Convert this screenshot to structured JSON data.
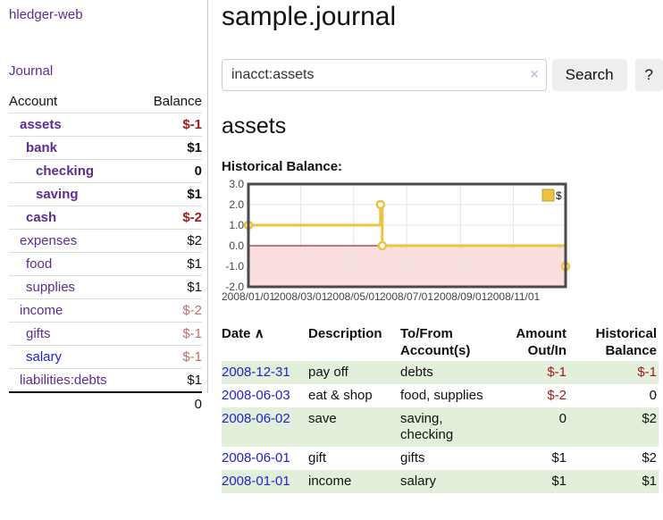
{
  "colors": {
    "accent_purple": "#5c2d91",
    "link_blue": "#2222cc",
    "negative": "#9d1a1a",
    "negative_muted": "#bb6f6f",
    "row_stripe_green": "#e2efdb",
    "chart_line": "#EDC240",
    "chart_negative_fill": "#fbdede",
    "chart_zero_line": "#8b0000",
    "chart_border": "#4a4a4a"
  },
  "sidebar": {
    "brand": "hledger-web",
    "journal_link": "Journal",
    "accounts": {
      "header_account": "Account",
      "header_balance": "Balance",
      "rows": [
        {
          "name": "assets",
          "depth": 0,
          "bold": true,
          "balance": "$-1",
          "balance_style": "neg"
        },
        {
          "name": "bank",
          "depth": 1,
          "bold": true,
          "balance": "$1",
          "balance_style": ""
        },
        {
          "name": "checking",
          "depth": 2,
          "bold": true,
          "balance": "0",
          "balance_style": ""
        },
        {
          "name": "saving",
          "depth": 2,
          "bold": true,
          "balance": "$1",
          "balance_style": ""
        },
        {
          "name": "cash",
          "depth": 1,
          "bold": true,
          "balance": "$-2",
          "balance_style": "neg"
        },
        {
          "name": "expenses",
          "depth": 0,
          "bold": false,
          "balance": "$2",
          "balance_style": ""
        },
        {
          "name": "food",
          "depth": 1,
          "bold": false,
          "balance": "$1",
          "balance_style": ""
        },
        {
          "name": "supplies",
          "depth": 1,
          "bold": false,
          "balance": "$1",
          "balance_style": ""
        },
        {
          "name": "income",
          "depth": 0,
          "bold": false,
          "balance": "$-2",
          "balance_style": "negl"
        },
        {
          "name": "gifts",
          "depth": 1,
          "bold": false,
          "balance": "$-1",
          "balance_style": "negl"
        },
        {
          "name": "salary",
          "depth": 1,
          "bold": false,
          "link_style": "blue",
          "balance": "$-1",
          "balance_style": "negl"
        },
        {
          "name": "liabilities:debts",
          "depth": 0,
          "bold": false,
          "balance": "$1",
          "balance_style": ""
        }
      ],
      "total": "0"
    }
  },
  "main": {
    "title": "sample.journal",
    "search": {
      "value": "inacct:assets",
      "clear_icon": "×",
      "button_label": "Search",
      "help_label": "?"
    },
    "account_heading": "assets",
    "chart_label": "Historical Balance:",
    "register": {
      "headers": {
        "date": "Date",
        "date_sort_icon": "∧",
        "description": "Description",
        "accounts": "To/From\nAccount(s)",
        "amount": "Amount\nOut/In",
        "balance": "Historical\nBalance"
      },
      "rows": [
        {
          "date": "2008-12-31",
          "description": "pay off",
          "accounts": "debts",
          "amount": "$-1",
          "balance": "$-1"
        },
        {
          "date": "2008-06-03",
          "description": "eat & shop",
          "accounts": "food, supplies",
          "amount": "$-2",
          "balance": "0"
        },
        {
          "date": "2008-06-02",
          "description": "save",
          "accounts": "saving,\nchecking",
          "amount": "0",
          "balance": "$2"
        },
        {
          "date": "2008-06-01",
          "description": "gift",
          "accounts": "gifts",
          "amount": "$1",
          "balance": "$2"
        },
        {
          "date": "2008-01-01",
          "description": "income",
          "accounts": "salary",
          "amount": "$1",
          "balance": "$1"
        }
      ]
    }
  },
  "chart_data": {
    "type": "line",
    "step": true,
    "title": "Historical Balance:",
    "series": [
      {
        "name": "$",
        "color": "#EDC240",
        "points": [
          [
            "2008/01/01",
            1
          ],
          [
            "2008/06/01",
            2
          ],
          [
            "2008/06/03",
            0
          ],
          [
            "2008/12/31",
            -1
          ]
        ]
      }
    ],
    "x_ticks": [
      "2008/01/01",
      "2008/03/01",
      "2008/05/01",
      "2008/07/01",
      "2008/09/01",
      "2008/11/01"
    ],
    "y_ticks": [
      3.0,
      2.0,
      1.0,
      0.0,
      -1.0,
      -2.0
    ],
    "xlim": [
      "2008/01/01",
      "2008/12/31"
    ],
    "ylim": [
      -2,
      3
    ],
    "grid": true,
    "legend_position": "top-right",
    "negative_region_fill": "#fbdede",
    "zero_line_color": "#8b0000"
  }
}
